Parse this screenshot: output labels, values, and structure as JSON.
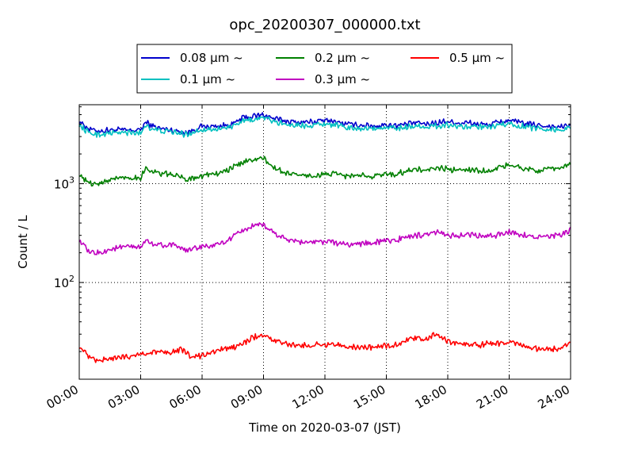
{
  "chart_data": {
    "type": "line",
    "title": "opc_20200307_000000.txt",
    "xlabel": "Time on 2020-03-07 (JST)",
    "ylabel": "Count / L",
    "yscale": "log",
    "xlim": [
      0,
      24
    ],
    "ylim": [
      10.5,
      6300
    ],
    "grid": true,
    "legend_position": "top-center, above plot",
    "x_ticks": [
      {
        "value": 0,
        "label": "00:00"
      },
      {
        "value": 3,
        "label": "03:00"
      },
      {
        "value": 6,
        "label": "06:00"
      },
      {
        "value": 9,
        "label": "09:00"
      },
      {
        "value": 12,
        "label": "12:00"
      },
      {
        "value": 15,
        "label": "15:00"
      },
      {
        "value": 18,
        "label": "18:00"
      },
      {
        "value": 21,
        "label": "21:00"
      },
      {
        "value": 24,
        "label": "24:00"
      }
    ],
    "y_ticks": [
      {
        "value": 100,
        "label": "10",
        "exp": "2"
      },
      {
        "value": 1000,
        "label": "10",
        "exp": "3"
      }
    ],
    "x": [
      0,
      0.5,
      1,
      1.5,
      2,
      2.5,
      3,
      3.25,
      3.5,
      4,
      4.5,
      5,
      5.25,
      5.5,
      6,
      6.5,
      7,
      7.5,
      8,
      8.5,
      9,
      9.5,
      10,
      10.5,
      11,
      11.5,
      12,
      12.5,
      13,
      13.5,
      14,
      14.5,
      15,
      15.5,
      16,
      16.5,
      17,
      17.25,
      17.5,
      18,
      18.5,
      19,
      19.5,
      20,
      20.5,
      21,
      21.5,
      22,
      22.5,
      23,
      23.5,
      24
    ],
    "series": [
      {
        "name": "0.08 μm ~",
        "color": "#0000cc",
        "values": [
          4300,
          3550,
          3400,
          3500,
          3500,
          3450,
          3500,
          4200,
          3900,
          3600,
          3500,
          3350,
          3300,
          3450,
          3800,
          3800,
          3850,
          4000,
          4650,
          4800,
          5000,
          4550,
          4350,
          4200,
          4200,
          4250,
          4350,
          4300,
          4000,
          3950,
          3900,
          3850,
          3950,
          3900,
          4000,
          4150,
          4000,
          4100,
          4150,
          4300,
          4100,
          4150,
          4000,
          3950,
          4200,
          4400,
          4150,
          4000,
          3900,
          3800,
          3750,
          3900
        ]
      },
      {
        "name": "0.1 μm ~",
        "color": "#00c0c0",
        "values": [
          3900,
          3250,
          3150,
          3250,
          3300,
          3250,
          3250,
          3950,
          3650,
          3400,
          3350,
          3200,
          3150,
          3300,
          3550,
          3550,
          3650,
          3750,
          4300,
          4450,
          4650,
          4250,
          4050,
          3900,
          3900,
          3950,
          4050,
          3950,
          3700,
          3650,
          3650,
          3600,
          3700,
          3650,
          3750,
          3850,
          3750,
          3800,
          3850,
          3950,
          3800,
          3850,
          3750,
          3700,
          3900,
          4050,
          3850,
          3700,
          3650,
          3550,
          3500,
          3650
        ]
      },
      {
        "name": "0.2 μm ~",
        "color": "#008000",
        "values": [
          1250,
          1000,
          1000,
          1100,
          1150,
          1150,
          1150,
          1450,
          1350,
          1250,
          1250,
          1150,
          1100,
          1150,
          1200,
          1250,
          1300,
          1450,
          1650,
          1750,
          1800,
          1450,
          1300,
          1250,
          1200,
          1200,
          1250,
          1250,
          1200,
          1200,
          1200,
          1200,
          1250,
          1250,
          1350,
          1400,
          1350,
          1400,
          1450,
          1400,
          1350,
          1400,
          1350,
          1350,
          1450,
          1550,
          1450,
          1400,
          1350,
          1400,
          1450,
          1600
        ]
      },
      {
        "name": "0.3 μm ~",
        "color": "#c000c0",
        "values": [
          270,
          200,
          200,
          215,
          225,
          230,
          225,
          270,
          250,
          240,
          240,
          220,
          210,
          220,
          230,
          235,
          250,
          285,
          340,
          370,
          380,
          320,
          280,
          265,
          255,
          255,
          260,
          255,
          240,
          245,
          250,
          255,
          265,
          270,
          290,
          300,
          300,
          310,
          320,
          305,
          295,
          305,
          295,
          290,
          305,
          330,
          310,
          295,
          290,
          290,
          300,
          340
        ]
      },
      {
        "name": "0.5 μm ~",
        "color": "#ff0000",
        "values": [
          23,
          17,
          16,
          17,
          17.5,
          18,
          19,
          19,
          19.5,
          20,
          20,
          21,
          19,
          17.5,
          18,
          19.5,
          21,
          22,
          24,
          28,
          29,
          26,
          24,
          23,
          23,
          23.5,
          23.5,
          23.5,
          22.5,
          22.5,
          22,
          22.5,
          23,
          23.5,
          26,
          27,
          27,
          29,
          30,
          25,
          24,
          24,
          23,
          24,
          24,
          25,
          23,
          21.5,
          21,
          21,
          21.5,
          24
        ]
      }
    ]
  }
}
